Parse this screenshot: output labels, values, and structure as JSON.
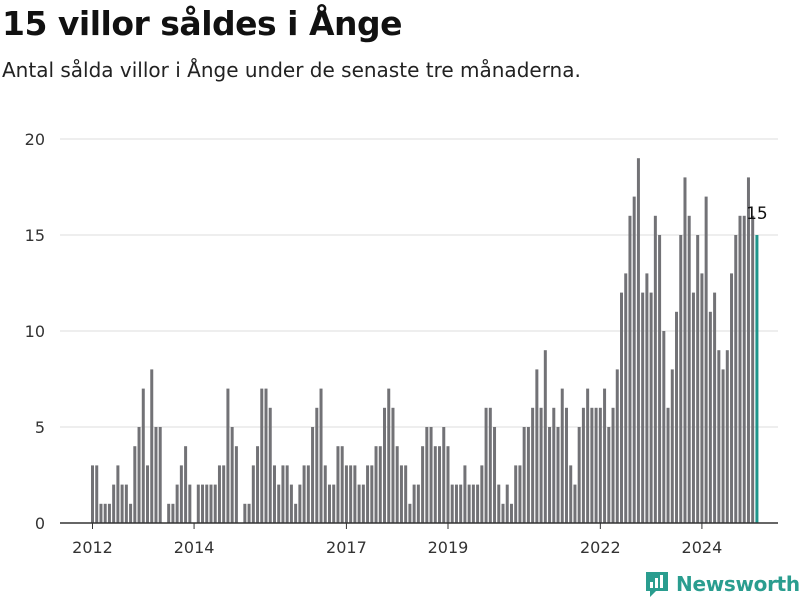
{
  "header": {
    "title": "15 villor såldes i Ånge",
    "subtitle": "Antal sålda villor i Ånge under de senaste tre månaderna."
  },
  "brand": {
    "name": "Newsworthy"
  },
  "colors": {
    "bar": "#727276",
    "highlight": "#1f958b",
    "grid": "#dddddd",
    "axis": "#333333",
    "brand": "#2a9d8f"
  },
  "chart_data": {
    "type": "bar",
    "title": "15 villor såldes i Ånge",
    "subtitle": "Antal sålda villor i Ånge under de senaste tre månaderna.",
    "xlabel": "",
    "ylabel": "",
    "ylim": [
      0,
      20
    ],
    "yticks": [
      0,
      5,
      10,
      15,
      20
    ],
    "grid": true,
    "legend": "none",
    "x_tick_labels": [
      "2012",
      "2014",
      "2017",
      "2019",
      "2022",
      "2024"
    ],
    "x_tick_positions": [
      "2012-01",
      "2014-01",
      "2017-01",
      "2019-01",
      "2022-01",
      "2024-01"
    ],
    "start_month": "2012-01",
    "values": [
      3,
      3,
      1,
      1,
      1,
      2,
      3,
      2,
      2,
      1,
      4,
      5,
      7,
      3,
      8,
      5,
      5,
      0,
      1,
      1,
      2,
      3,
      4,
      2,
      0,
      2,
      2,
      2,
      2,
      2,
      3,
      3,
      7,
      5,
      4,
      0,
      1,
      1,
      3,
      4,
      7,
      7,
      6,
      3,
      2,
      3,
      3,
      2,
      1,
      2,
      3,
      3,
      5,
      6,
      7,
      3,
      2,
      2,
      4,
      4,
      3,
      3,
      3,
      2,
      2,
      3,
      3,
      4,
      4,
      6,
      7,
      6,
      4,
      3,
      3,
      1,
      2,
      2,
      4,
      5,
      5,
      4,
      4,
      5,
      4,
      2,
      2,
      2,
      3,
      2,
      2,
      2,
      3,
      6,
      6,
      5,
      2,
      1,
      2,
      1,
      3,
      3,
      5,
      5,
      6,
      8,
      6,
      9,
      5,
      6,
      5,
      7,
      6,
      3,
      2,
      5,
      6,
      7,
      6,
      6,
      6,
      7,
      5,
      6,
      8,
      12,
      13,
      16,
      17,
      19,
      12,
      13,
      12,
      16,
      15,
      10,
      6,
      8,
      11,
      15,
      18,
      16,
      12,
      15,
      13,
      17,
      11,
      12,
      9,
      8,
      9,
      13,
      15,
      16,
      16,
      18,
      16,
      15
    ],
    "highlight_index": 157,
    "highlight_label": "15"
  }
}
